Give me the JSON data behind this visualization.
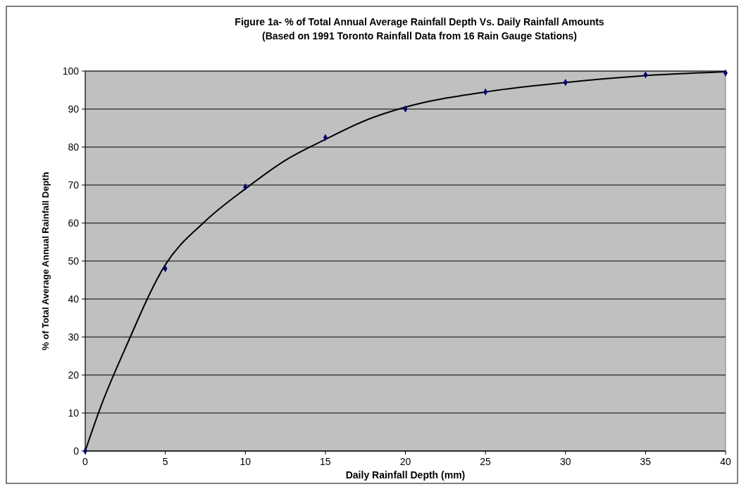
{
  "chart_data": {
    "type": "scatter",
    "title": "Figure 1a- % of Total Annual Average Rainfall Depth Vs. Daily Rainfall Amounts",
    "subtitle": "(Based on 1991 Toronto Rainfall Data from 16 Rain Gauge Stations)",
    "xlabel": "Daily Rainfall Depth (mm)",
    "ylabel": "% of Total Average Annual Rainfall Depth",
    "xlim": [
      0,
      40
    ],
    "xticks": [
      0,
      5,
      10,
      15,
      20,
      25,
      30,
      35,
      40
    ],
    "ylim": [
      0,
      100
    ],
    "yticks": [
      0,
      10,
      20,
      30,
      40,
      50,
      60,
      70,
      80,
      90,
      100
    ],
    "grid": "y",
    "series": [
      {
        "marker": "diamond",
        "color": "#000080",
        "x": [
          0,
          5,
          10,
          15,
          20,
          25,
          30,
          35,
          40
        ],
        "values": [
          0,
          48,
          69.5,
          82.5,
          90,
          94.5,
          97,
          99,
          99.5
        ]
      },
      {
        "type": "line",
        "marker": "none",
        "line_style": "solid",
        "color": "#000000",
        "x": [
          0,
          1,
          2.5,
          5,
          7.5,
          10,
          12.5,
          15,
          17.5,
          20,
          25,
          30,
          35,
          40
        ],
        "values": [
          0,
          12,
          27,
          49,
          60.5,
          69,
          76.5,
          82,
          87,
          90.5,
          94.5,
          97,
          98.8,
          99.8
        ]
      }
    ]
  }
}
